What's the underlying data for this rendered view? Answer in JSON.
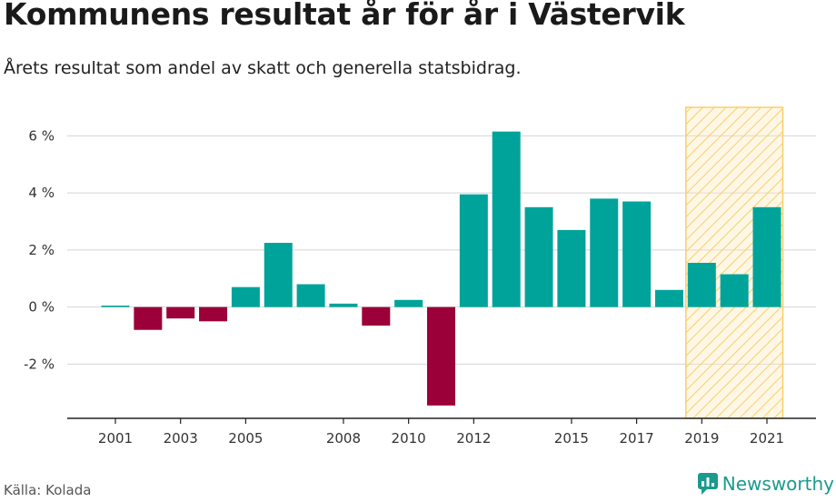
{
  "header": {
    "title": "Kommunens resultat år för år i Västervik",
    "subtitle": "Årets resultat som andel av skatt och generella statsbidrag."
  },
  "footer": {
    "source": "Källa: Kolada",
    "brand": "Newsworthy"
  },
  "colors": {
    "positive": "#00a39a",
    "negative": "#9b0038",
    "highlight_fill": "#fde9b8",
    "highlight_stroke": "#f8cf6a",
    "grid": "#d4d4d4",
    "brand": "#1b9a8e"
  },
  "chart_data": {
    "type": "bar",
    "x": [
      2001,
      2002,
      2003,
      2004,
      2005,
      2006,
      2007,
      2008,
      2009,
      2010,
      2011,
      2012,
      2013,
      2014,
      2015,
      2016,
      2017,
      2018,
      2019,
      2020,
      2021
    ],
    "values": [
      0.05,
      -0.8,
      -0.4,
      -0.5,
      0.7,
      2.25,
      0.8,
      0.12,
      -0.65,
      0.25,
      -3.45,
      3.95,
      6.15,
      3.5,
      2.7,
      3.8,
      3.7,
      0.6,
      1.55,
      1.15,
      3.5
    ],
    "ylim": [
      -3.9,
      7.0
    ],
    "yticks": [
      6,
      4,
      2,
      0,
      -2
    ],
    "ytick_labels": [
      "6 %",
      "4 %",
      "2 %",
      "0 %",
      "-2 %"
    ],
    "xtick_labels": [
      "2001",
      "2003",
      "2005",
      "2008",
      "2010",
      "2012",
      "2015",
      "2017",
      "2019",
      "2021"
    ],
    "highlight_range": [
      2019,
      2021
    ],
    "grid": true,
    "legend": "none",
    "xlabel": "",
    "ylabel": ""
  }
}
